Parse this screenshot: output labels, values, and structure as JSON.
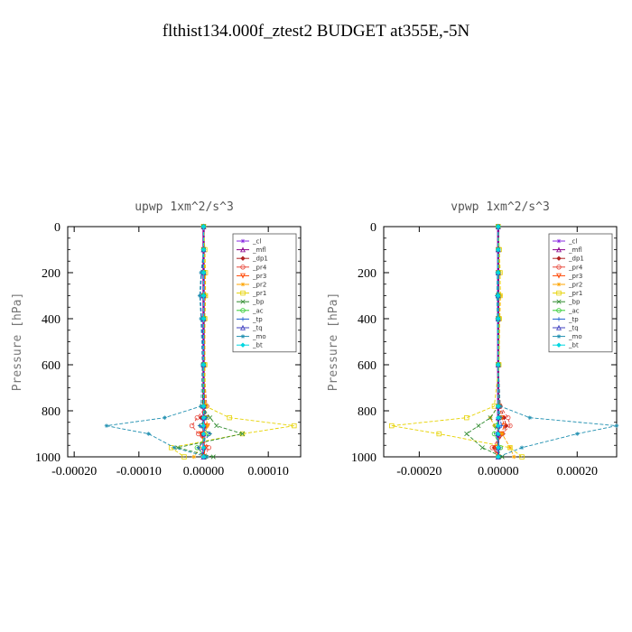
{
  "title": "flthist134.000f_ztest2  BUDGET at355E,-5N",
  "chart_data": [
    {
      "type": "line",
      "title": "upwp   1xm^2/s^3",
      "ylabel": "Pressure [hPa]",
      "xlim": [
        -0.00021,
        0.00015
      ],
      "ylim": [
        1000,
        0
      ],
      "xticks": [
        "-0.00020",
        "-0.00010",
        "0.00000",
        "0.00010"
      ],
      "xtick_values": [
        -0.0002,
        -0.0001,
        0,
        0.0001
      ],
      "yticks": [
        0,
        200,
        400,
        600,
        800,
        1000
      ],
      "grid": false,
      "legend_position": "top-right",
      "series": [
        {
          "name": "_cl",
          "color": "#8a2be2",
          "values": [
            0,
            0,
            0,
            0,
            0,
            0,
            0,
            0,
            0,
            0,
            0,
            0
          ]
        },
        {
          "name": "_mfl",
          "color": "#8b008b",
          "values": [
            0,
            0,
            0,
            0,
            0,
            0,
            0,
            0,
            0,
            0,
            0,
            0
          ]
        },
        {
          "name": "_dp1",
          "color": "#b22222",
          "values": [
            0,
            0,
            0,
            0,
            0,
            0,
            3e-06,
            -4e-06,
            4e-06,
            -3e-06,
            2e-06,
            0
          ]
        },
        {
          "name": "_pr4",
          "color": "#e8463a",
          "values": [
            0,
            0,
            0,
            0,
            0,
            0,
            5e-06,
            -1e-05,
            -1.8e-05,
            -8e-06,
            8e-06,
            2e-06
          ]
        },
        {
          "name": "_pr3",
          "color": "#ff4500",
          "values": [
            0,
            0,
            0,
            0,
            0,
            0,
            2e-06,
            4e-06,
            6e-06,
            -4e-06,
            3e-06,
            0
          ]
        },
        {
          "name": "_pr2",
          "color": "#ffa500",
          "values": [
            0,
            0,
            2e-06,
            3e-06,
            2e-06,
            2e-06,
            0,
            4e-06,
            6e-06,
            2e-06,
            -6e-06,
            -1.5e-05
          ]
        },
        {
          "name": "_pr1",
          "color": "#e6d200",
          "values": [
            0,
            2e-06,
            3e-06,
            3e-06,
            2e-06,
            2e-06,
            3e-06,
            4e-05,
            0.00014,
            6e-05,
            -5e-05,
            -3e-05
          ]
        },
        {
          "name": "_bp",
          "color": "#2e8b2e",
          "values": [
            0,
            0,
            0,
            0,
            0,
            0,
            -2e-06,
            1e-05,
            2e-05,
            6e-05,
            -4e-05,
            1.5e-05
          ]
        },
        {
          "name": "_ac",
          "color": "#32cd32",
          "values": [
            0,
            0,
            0,
            0,
            0,
            0,
            0,
            3e-06,
            -4e-06,
            8e-06,
            -1e-05,
            3e-06
          ]
        },
        {
          "name": "_tp",
          "color": "#1e60d0",
          "values": [
            0,
            0,
            -3e-06,
            -5e-06,
            -3e-06,
            0,
            1e-06,
            4e-06,
            -6e-06,
            1e-05,
            -8e-06,
            2e-06
          ]
        },
        {
          "name": "_tq",
          "color": "#4040c0",
          "values": [
            0,
            0,
            0,
            0,
            0,
            0,
            0,
            0,
            0,
            0,
            0,
            0
          ]
        },
        {
          "name": "_mo",
          "color": "#1f8fb0",
          "values": [
            0,
            0,
            -4e-06,
            -6e-06,
            -4e-06,
            -2e-06,
            -4e-06,
            -6e-05,
            -0.00015,
            -8.5e-05,
            -4.5e-05,
            5e-06
          ]
        },
        {
          "name": "_bt",
          "color": "#00d7e0",
          "values": [
            0,
            0,
            0,
            0,
            0,
            0,
            0,
            0,
            0,
            0,
            0,
            0
          ]
        }
      ],
      "pressure_levels": [
        0,
        100,
        200,
        300,
        400,
        600,
        780,
        830,
        865,
        900,
        960,
        1000
      ]
    },
    {
      "type": "line",
      "title": "vpwp   1xm^2/s^3",
      "ylabel": "Pressure [hPa]",
      "xlim": [
        -0.00029,
        0.0003
      ],
      "ylim": [
        1000,
        0
      ],
      "xticks": [
        "-0.00020",
        "0.00000",
        "0.00020"
      ],
      "xtick_values": [
        -0.0002,
        0,
        0.0002
      ],
      "yticks": [
        0,
        200,
        400,
        600,
        800,
        1000
      ],
      "grid": false,
      "legend_position": "top-right",
      "series": [
        {
          "name": "_cl",
          "color": "#8a2be2",
          "values": [
            0,
            0,
            0,
            0,
            0,
            0,
            0,
            0,
            0,
            0,
            0,
            0
          ]
        },
        {
          "name": "_mfl",
          "color": "#8b008b",
          "values": [
            0,
            0,
            0,
            0,
            0,
            0,
            0,
            0,
            0,
            0,
            0,
            0
          ]
        },
        {
          "name": "_dp1",
          "color": "#b22222",
          "values": [
            0,
            0,
            0,
            0,
            0,
            0,
            5e-06,
            1.5e-05,
            2e-05,
            1.2e-05,
            -1e-05,
            0
          ]
        },
        {
          "name": "_pr4",
          "color": "#e8463a",
          "values": [
            0,
            0,
            0,
            0,
            0,
            0,
            5e-06,
            2.5e-05,
            3e-05,
            1e-05,
            -1.5e-05,
            0
          ]
        },
        {
          "name": "_pr3",
          "color": "#ff4500",
          "values": [
            0,
            0,
            0,
            0,
            0,
            0,
            3e-06,
            1e-05,
            1.5e-05,
            8e-06,
            -6e-06,
            0
          ]
        },
        {
          "name": "_pr2",
          "color": "#ffa500",
          "values": [
            0,
            0,
            4e-06,
            6e-06,
            4e-06,
            2e-06,
            0,
            -2e-05,
            -1e-05,
            1e-05,
            3e-05,
            4e-05
          ]
        },
        {
          "name": "_pr1",
          "color": "#e6d200",
          "values": [
            0,
            3e-06,
            5e-06,
            5e-06,
            3e-06,
            2e-06,
            -1e-05,
            -8e-05,
            -0.00027,
            -0.00015,
            3e-05,
            6e-05
          ]
        },
        {
          "name": "_bp",
          "color": "#2e8b2e",
          "values": [
            0,
            0,
            0,
            0,
            0,
            0,
            0,
            -2e-05,
            -5e-05,
            -8e-05,
            -4e-05,
            1e-05
          ]
        },
        {
          "name": "_ac",
          "color": "#32cd32",
          "values": [
            0,
            0,
            0,
            0,
            0,
            0,
            0,
            4e-06,
            -6e-06,
            -1e-05,
            6e-06,
            0
          ]
        },
        {
          "name": "_tp",
          "color": "#1e60d0",
          "values": [
            0,
            0,
            -2e-06,
            -3e-06,
            -2e-06,
            0,
            1e-06,
            5e-06,
            8e-06,
            -5e-06,
            4e-06,
            0
          ]
        },
        {
          "name": "_tq",
          "color": "#4040c0",
          "values": [
            0,
            0,
            0,
            0,
            0,
            0,
            0,
            0,
            0,
            0,
            0,
            0
          ]
        },
        {
          "name": "_mo",
          "color": "#1f8fb0",
          "values": [
            0,
            0,
            -2e-06,
            -3e-06,
            -2e-06,
            0,
            5e-06,
            8e-05,
            0.0003,
            0.0002,
            6e-05,
            0
          ]
        },
        {
          "name": "_bt",
          "color": "#00d7e0",
          "values": [
            0,
            0,
            0,
            0,
            0,
            0,
            0,
            0,
            0,
            0,
            0,
            0
          ]
        }
      ],
      "pressure_levels": [
        0,
        100,
        200,
        300,
        400,
        600,
        780,
        830,
        865,
        900,
        960,
        1000
      ]
    }
  ]
}
